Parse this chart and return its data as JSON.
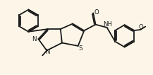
{
  "background_color": "#fdf6e8",
  "line_color": "#1a1a1a",
  "lw": 1.3,
  "figsize": [
    2.17,
    1.06
  ],
  "dpi": 100,
  "xlim": [
    0,
    10
  ],
  "ylim": [
    0,
    4.9
  ]
}
